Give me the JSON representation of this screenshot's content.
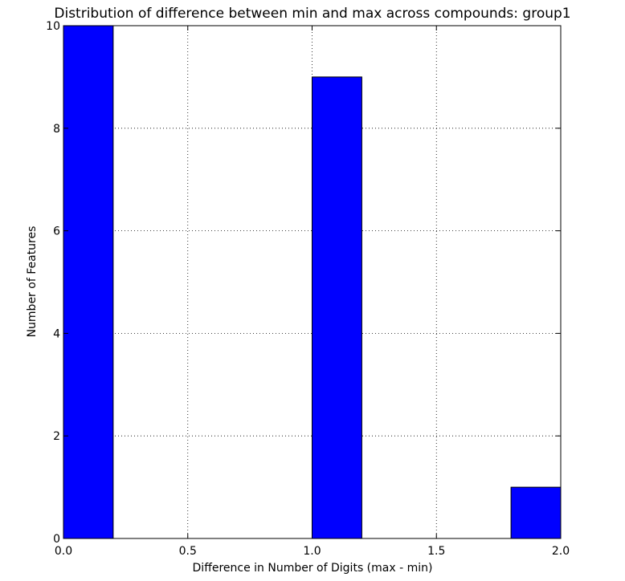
{
  "chart_data": {
    "type": "bar",
    "title": "Distribution of difference between min and max across compounds: group1",
    "xlabel": "Difference in Number of Digits (max - min)",
    "ylabel": "Number of Features",
    "xlim": [
      0.0,
      2.0
    ],
    "ylim": [
      0,
      10
    ],
    "x_ticks": [
      "0.0",
      "0.5",
      "1.0",
      "1.5",
      "2.0"
    ],
    "y_ticks": [
      "0",
      "2",
      "4",
      "6",
      "8",
      "10"
    ],
    "grid": true,
    "bins": [
      {
        "start": 0.0,
        "end": 0.2,
        "value": 10
      },
      {
        "start": 1.0,
        "end": 1.2,
        "value": 9
      },
      {
        "start": 1.8,
        "end": 2.0,
        "value": 1
      }
    ],
    "bar_color": "#0000ff",
    "edge_color": "#000000"
  }
}
